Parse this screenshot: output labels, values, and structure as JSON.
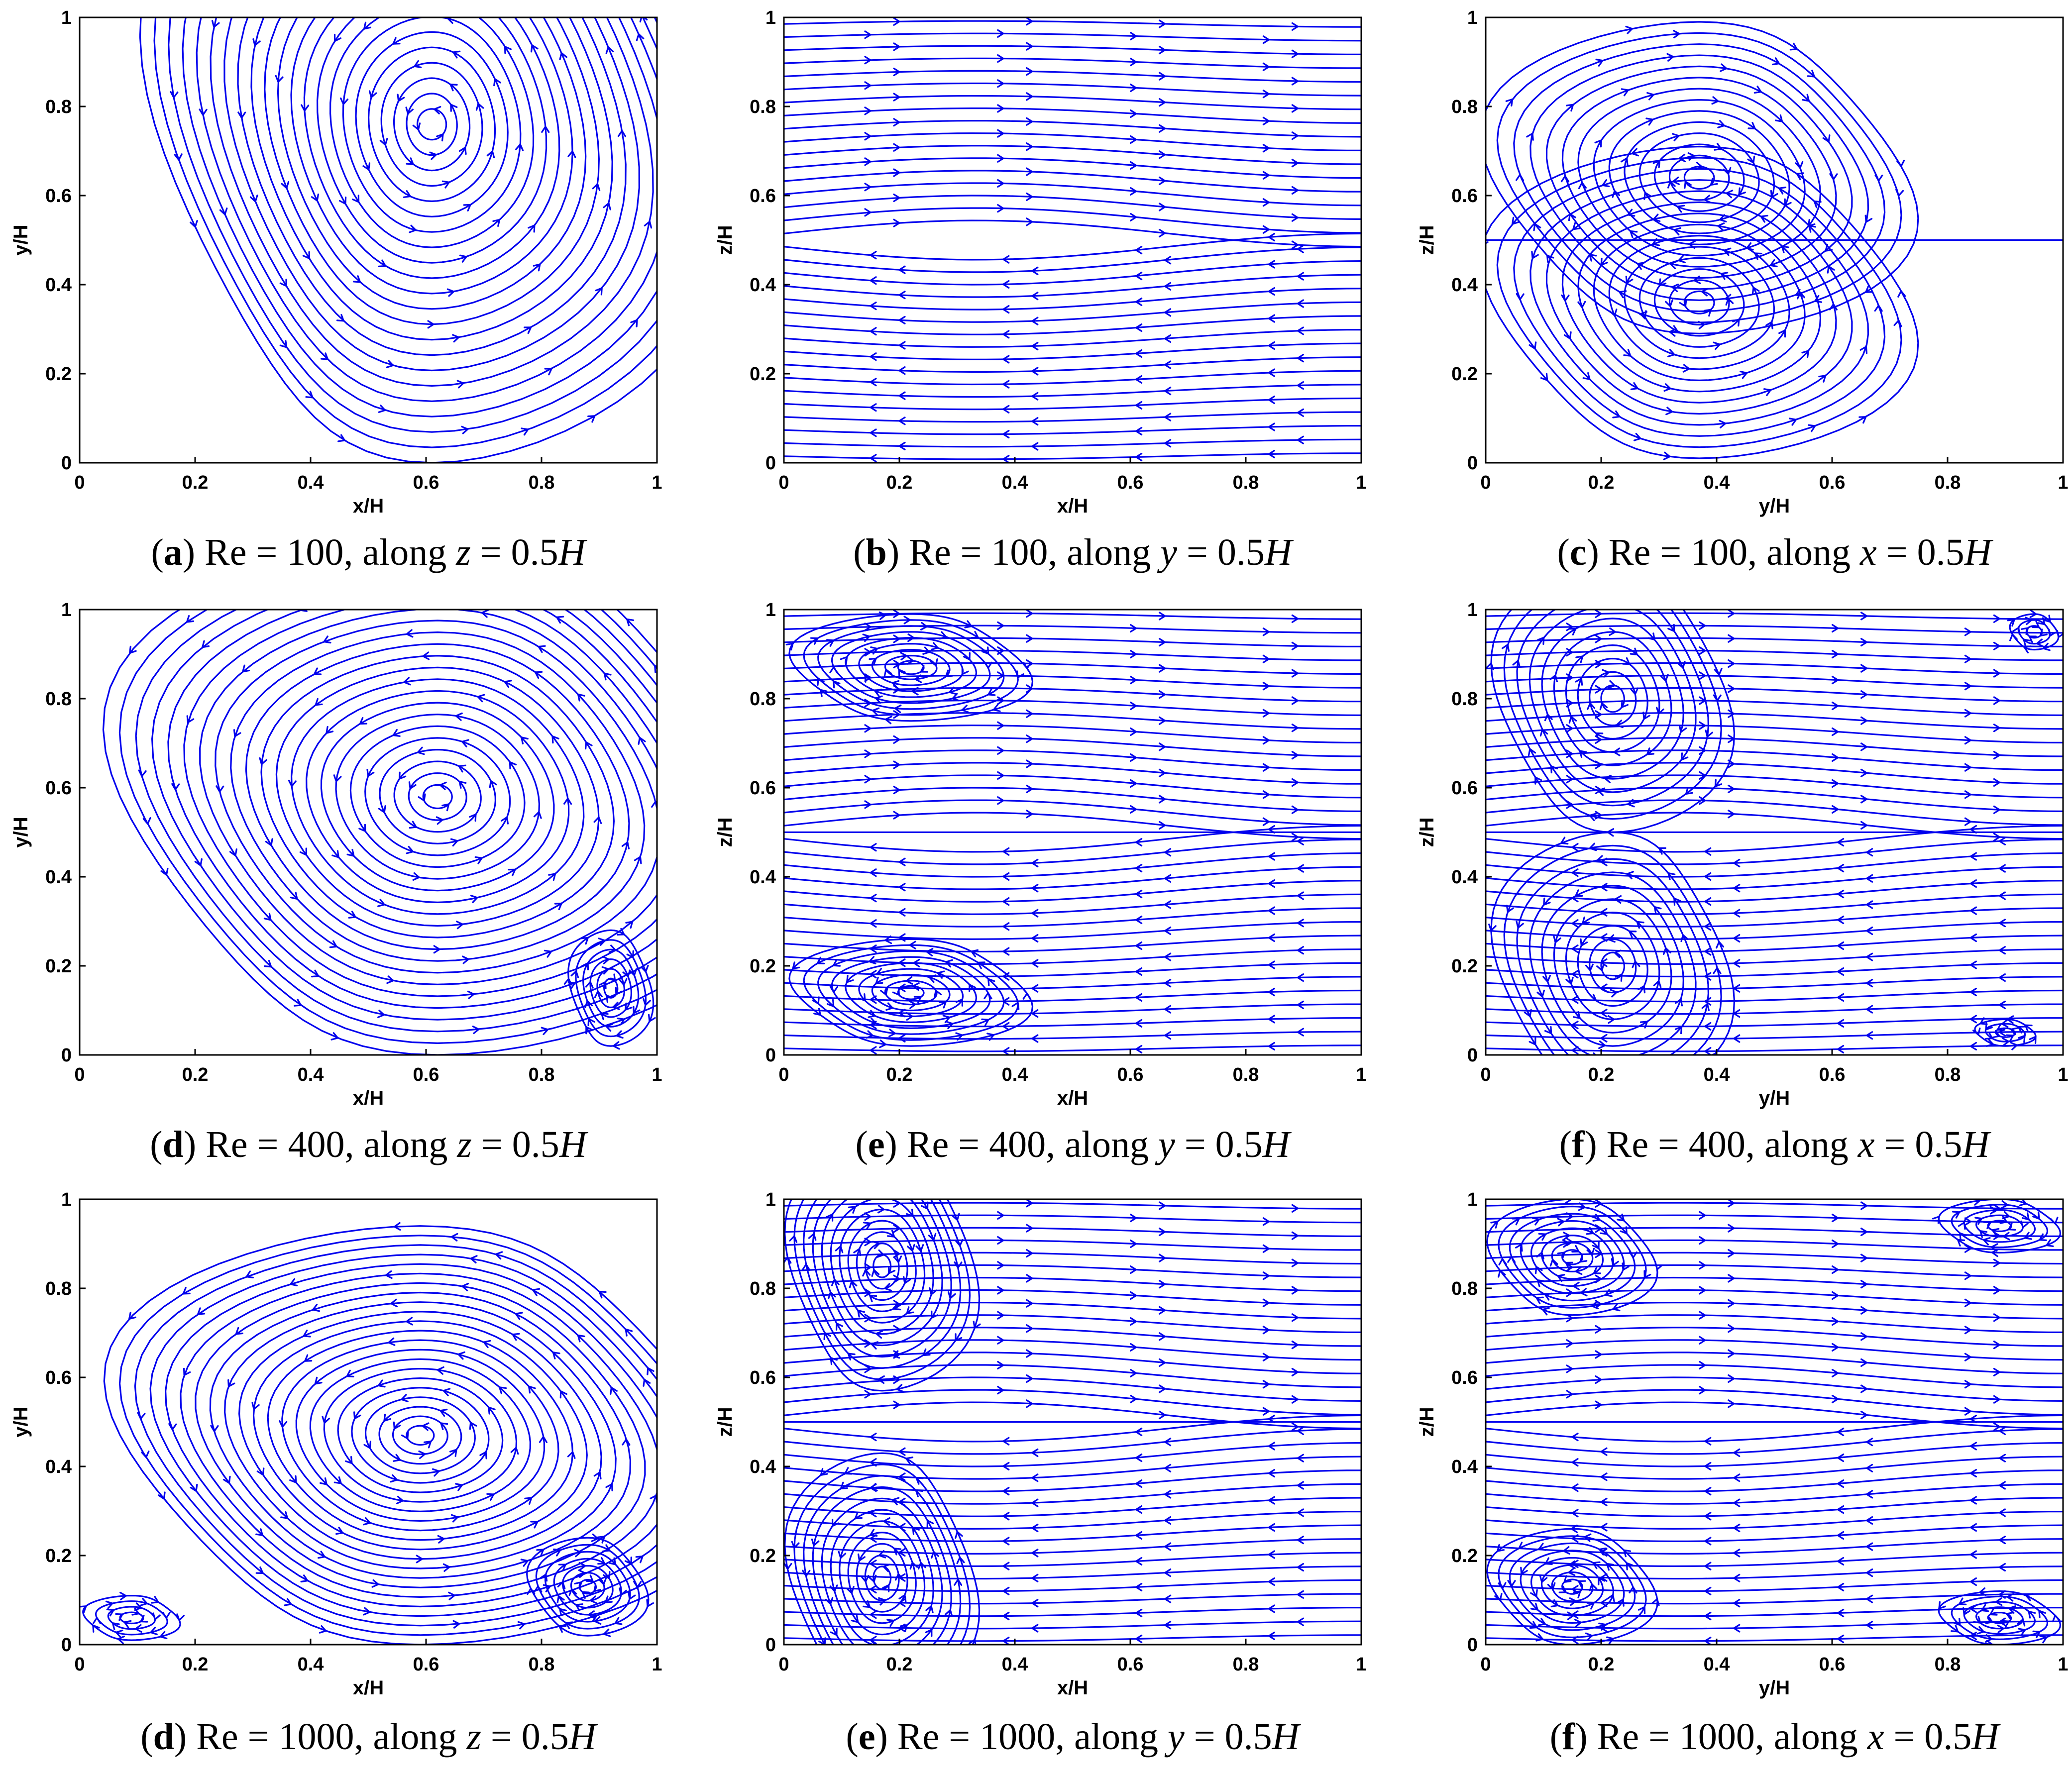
{
  "chart_data": [
    {
      "id": "a",
      "type": "streamline",
      "caption": {
        "letter": "a",
        "re_label": "Re",
        "re_value": "100",
        "along": "along",
        "var": "z",
        "value": "0.5",
        "unit": "H"
      },
      "xlabel": "x/H",
      "ylabel": "y/H",
      "xlim": [
        0,
        1
      ],
      "ylim": [
        0,
        1
      ],
      "xticks": [
        "0",
        "0.2",
        "0.4",
        "0.6",
        "0.8",
        "1"
      ],
      "yticks": [
        "0",
        "0.2",
        "0.4",
        "0.6",
        "0.8",
        "1"
      ],
      "vortices": [
        {
          "cx": 0.61,
          "cy": 0.76,
          "rx": 0.48,
          "ry": 0.76,
          "dir": -1,
          "n": 22,
          "inner": 0.025
        }
      ]
    },
    {
      "id": "b",
      "type": "streamline",
      "caption": {
        "letter": "b",
        "re_label": "Re",
        "re_value": "100",
        "along": "along",
        "var": "y",
        "value": "0.5",
        "unit": "H"
      },
      "xlabel": "x/H",
      "ylabel": "z/H",
      "xlim": [
        0,
        1
      ],
      "ylim": [
        0,
        1
      ],
      "xticks": [
        "0",
        "0.2",
        "0.4",
        "0.6",
        "0.8",
        "1"
      ],
      "yticks": [
        "0",
        "0.2",
        "0.4",
        "0.6",
        "0.8",
        "1"
      ],
      "vortices": [],
      "layered": true
    },
    {
      "id": "c",
      "type": "streamline",
      "caption": {
        "letter": "c",
        "re_label": "Re",
        "re_value": "100",
        "along": "along",
        "var": "x",
        "value": "0.5",
        "unit": "H"
      },
      "xlabel": "y/H",
      "ylabel": "z/H",
      "xlim": [
        0,
        1
      ],
      "ylim": [
        0,
        1
      ],
      "xticks": [
        "0",
        "0.2",
        "0.4",
        "0.6",
        "0.8",
        "1"
      ],
      "yticks": [
        "0",
        "0.2",
        "0.4",
        "0.6",
        "0.8",
        "1"
      ],
      "vortices": [
        {
          "cx": 0.37,
          "cy": 0.64,
          "rx": 0.36,
          "ry": 0.35,
          "dir": 1,
          "n": 14,
          "inner": 0.02
        },
        {
          "cx": 0.37,
          "cy": 0.36,
          "rx": 0.36,
          "ry": 0.35,
          "dir": -1,
          "n": 14,
          "inner": 0.02
        }
      ],
      "midline": true
    },
    {
      "id": "d",
      "type": "streamline",
      "caption": {
        "letter": "d",
        "re_label": "Re",
        "re_value": "400",
        "along": "along",
        "var": "z",
        "value": "0.5",
        "unit": "H"
      },
      "xlabel": "x/H",
      "ylabel": "y/H",
      "xlim": [
        0,
        1
      ],
      "ylim": [
        0,
        1
      ],
      "xticks": [
        "0",
        "0.2",
        "0.4",
        "0.6",
        "0.8",
        "1"
      ],
      "yticks": [
        "0",
        "0.2",
        "0.4",
        "0.6",
        "0.8",
        "1"
      ],
      "vortices": [
        {
          "cx": 0.62,
          "cy": 0.58,
          "rx": 0.55,
          "ry": 0.58,
          "dir": -1,
          "n": 22,
          "inner": 0.02
        },
        {
          "cx": 0.92,
          "cy": 0.15,
          "rx": 0.07,
          "ry": 0.13,
          "dir": 1,
          "n": 6,
          "inner": 0.01
        }
      ]
    },
    {
      "id": "e",
      "type": "streamline",
      "caption": {
        "letter": "e",
        "re_label": "Re",
        "re_value": "400",
        "along": "along",
        "var": "y",
        "value": "0.5",
        "unit": "H"
      },
      "xlabel": "x/H",
      "ylabel": "z/H",
      "xlim": [
        0,
        1
      ],
      "ylim": [
        0,
        1
      ],
      "xticks": [
        "0",
        "0.2",
        "0.4",
        "0.6",
        "0.8",
        "1"
      ],
      "yticks": [
        "0",
        "0.2",
        "0.4",
        "0.6",
        "0.8",
        "1"
      ],
      "vortices": [
        {
          "cx": 0.22,
          "cy": 0.87,
          "rx": 0.2,
          "ry": 0.12,
          "dir": 1,
          "n": 9,
          "inner": 0.015
        },
        {
          "cx": 0.22,
          "cy": 0.14,
          "rx": 0.2,
          "ry": 0.12,
          "dir": -1,
          "n": 9,
          "inner": 0.015
        }
      ],
      "layered": true,
      "midline": true
    },
    {
      "id": "f",
      "type": "streamline",
      "caption": {
        "letter": "f",
        "re_label": "Re",
        "re_value": "400",
        "along": "along",
        "var": "x",
        "value": "0.5",
        "unit": "H"
      },
      "xlabel": "y/H",
      "ylabel": "z/H",
      "xlim": [
        0,
        1
      ],
      "ylim": [
        0,
        1
      ],
      "xticks": [
        "0",
        "0.2",
        "0.4",
        "0.6",
        "0.8",
        "1"
      ],
      "yticks": [
        "0",
        "0.2",
        "0.4",
        "0.6",
        "0.8",
        "1"
      ],
      "vortices": [
        {
          "cx": 0.22,
          "cy": 0.8,
          "rx": 0.2,
          "ry": 0.3,
          "dir": 1,
          "n": 10,
          "inner": 0.015
        },
        {
          "cx": 0.22,
          "cy": 0.2,
          "rx": 0.2,
          "ry": 0.3,
          "dir": -1,
          "n": 10,
          "inner": 0.015
        },
        {
          "cx": 0.95,
          "cy": 0.95,
          "rx": 0.04,
          "ry": 0.04,
          "dir": 1,
          "n": 3,
          "inner": 0.008
        },
        {
          "cx": 0.9,
          "cy": 0.05,
          "rx": 0.05,
          "ry": 0.03,
          "dir": -1,
          "n": 3,
          "inner": 0.008
        }
      ],
      "layered": true,
      "midline": true
    },
    {
      "id": "g",
      "type": "streamline",
      "caption": {
        "letter": "d",
        "re_label": "Re",
        "re_value": "1000",
        "along": "along",
        "var": "z",
        "value": "0.5",
        "unit": "H"
      },
      "xlabel": "x/H",
      "ylabel": "y/H",
      "xlim": [
        0,
        1
      ],
      "ylim": [
        0,
        1
      ],
      "xticks": [
        "0",
        "0.2",
        "0.4",
        "0.6",
        "0.8",
        "1"
      ],
      "yticks": [
        "0",
        "0.2",
        "0.4",
        "0.6",
        "0.8",
        "1"
      ],
      "vortices": [
        {
          "cx": 0.59,
          "cy": 0.47,
          "rx": 0.52,
          "ry": 0.47,
          "dir": -1,
          "n": 22,
          "inner": 0.02
        },
        {
          "cx": 0.88,
          "cy": 0.13,
          "rx": 0.1,
          "ry": 0.11,
          "dir": 1,
          "n": 7,
          "inner": 0.01
        },
        {
          "cx": 0.09,
          "cy": 0.06,
          "rx": 0.08,
          "ry": 0.05,
          "dir": 1,
          "n": 4,
          "inner": 0.008
        }
      ]
    },
    {
      "id": "h",
      "type": "streamline",
      "caption": {
        "letter": "e",
        "re_label": "Re",
        "re_value": "1000",
        "along": "along",
        "var": "y",
        "value": "0.5",
        "unit": "H"
      },
      "xlabel": "x/H",
      "ylabel": "z/H",
      "xlim": [
        0,
        1
      ],
      "ylim": [
        0,
        1
      ],
      "xticks": [
        "0",
        "0.2",
        "0.4",
        "0.6",
        "0.8",
        "1"
      ],
      "yticks": [
        "0",
        "0.2",
        "0.4",
        "0.6",
        "0.8",
        "1"
      ],
      "vortices": [
        {
          "cx": 0.17,
          "cy": 0.85,
          "rx": 0.16,
          "ry": 0.28,
          "dir": 1,
          "n": 11,
          "inner": 0.015
        },
        {
          "cx": 0.17,
          "cy": 0.15,
          "rx": 0.16,
          "ry": 0.28,
          "dir": -1,
          "n": 11,
          "inner": 0.015
        }
      ],
      "layered": true,
      "midline": true
    },
    {
      "id": "i",
      "type": "streamline",
      "caption": {
        "letter": "f",
        "re_label": "Re",
        "re_value": "1000",
        "along": "along",
        "var": "x",
        "value": "0.5",
        "unit": "H"
      },
      "xlabel": "y/H",
      "ylabel": "z/H",
      "xlim": [
        0,
        1
      ],
      "ylim": [
        0,
        1
      ],
      "xticks": [
        "0",
        "0.2",
        "0.4",
        "0.6",
        "0.8",
        "1"
      ],
      "yticks": [
        "0",
        "0.2",
        "0.4",
        "0.6",
        "0.8",
        "1"
      ],
      "vortices": [
        {
          "cx": 0.15,
          "cy": 0.87,
          "rx": 0.14,
          "ry": 0.13,
          "dir": 1,
          "n": 8,
          "inner": 0.012
        },
        {
          "cx": 0.15,
          "cy": 0.13,
          "rx": 0.14,
          "ry": 0.13,
          "dir": -1,
          "n": 8,
          "inner": 0.012
        },
        {
          "cx": 0.89,
          "cy": 0.94,
          "rx": 0.1,
          "ry": 0.06,
          "dir": 1,
          "n": 5,
          "inner": 0.008
        },
        {
          "cx": 0.89,
          "cy": 0.06,
          "rx": 0.1,
          "ry": 0.06,
          "dir": -1,
          "n": 5,
          "inner": 0.008
        }
      ],
      "layered": true,
      "midline": true
    }
  ]
}
